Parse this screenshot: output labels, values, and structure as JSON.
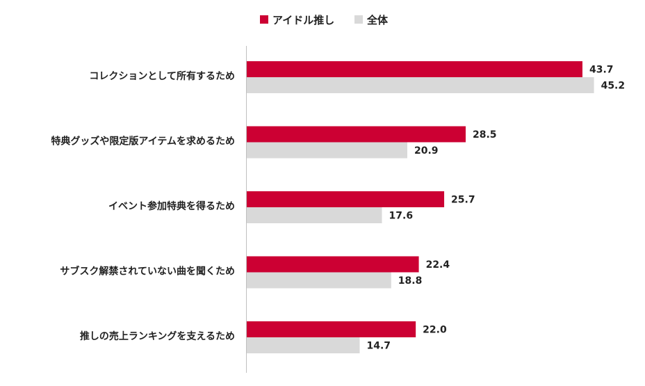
{
  "chart_data": {
    "type": "bar",
    "orientation": "horizontal",
    "categories": [
      "コレクションとして所有するため",
      "特典グッズや限定版アイテムを求めるため",
      "イベント参加特典を得るため",
      "サブスク解禁されていない曲を聞くため",
      "推しの売上ランキングを支えるため"
    ],
    "series": [
      {
        "name": "アイドル推し",
        "color": "#cc0033",
        "values": [
          43.7,
          28.5,
          25.7,
          22.4,
          22.0
        ]
      },
      {
        "name": "全体",
        "color": "#d9d9d9",
        "values": [
          45.2,
          20.9,
          17.6,
          18.8,
          14.7
        ]
      }
    ],
    "value_labels": [
      [
        "43.7",
        "28.5",
        "25.7",
        "22.4",
        "22.0"
      ],
      [
        "45.2",
        "20.9",
        "17.6",
        "18.8",
        "14.7"
      ]
    ],
    "legend_position": "top-center",
    "grid": false,
    "xlim": [
      0,
      50
    ]
  }
}
